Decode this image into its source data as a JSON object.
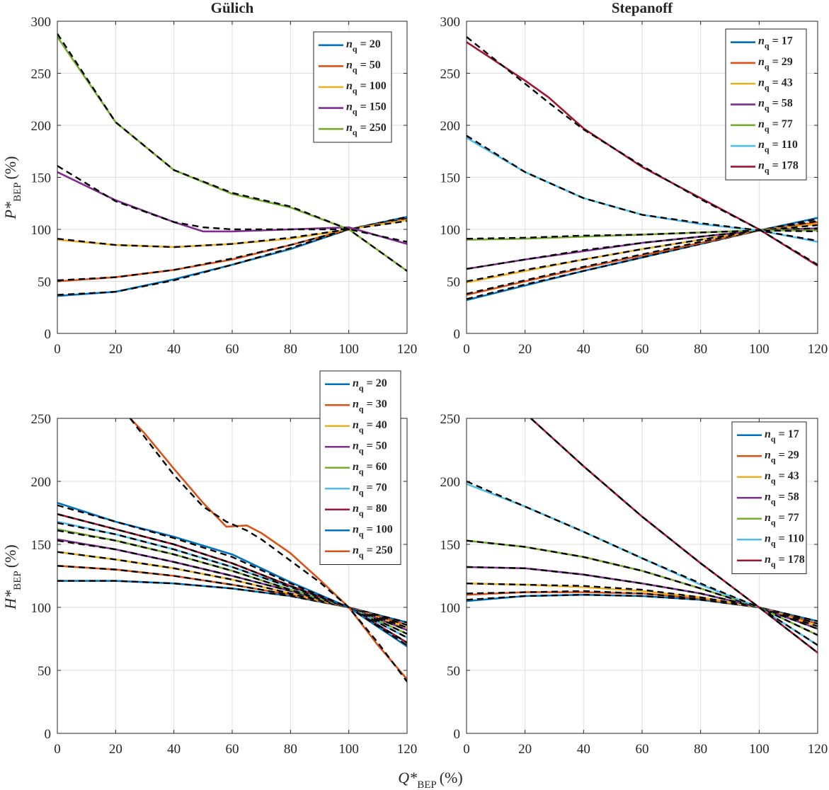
{
  "figure": {
    "xlabel_main": "Q*",
    "xlabel_sub": "BEP",
    "xlabel_unit": "(%)"
  },
  "chart_data": [
    {
      "type": "line",
      "title": "Gülich",
      "ylabel_main": "P*",
      "ylabel_sub": "BEP",
      "ylabel_unit": "(%)",
      "xlim": [
        0,
        120
      ],
      "ylim": [
        0,
        300
      ],
      "xticks": [
        0,
        20,
        40,
        60,
        80,
        100,
        120
      ],
      "yticks": [
        0,
        50,
        100,
        150,
        200,
        250,
        300
      ],
      "legend_symbol": "n",
      "legend_sub": "q",
      "legend_position": "top-right",
      "grid": true,
      "series": [
        {
          "name": "20",
          "label": " = 20",
          "color": "#0072BD",
          "x": [
            0,
            20,
            40,
            60,
            80,
            100,
            120
          ],
          "y": [
            36,
            40,
            52,
            66,
            81,
            100,
            112
          ],
          "fit": [
            37,
            40,
            51,
            66,
            82,
            100,
            112
          ]
        },
        {
          "name": "50",
          "label": " = 50",
          "color": "#D95319",
          "x": [
            0,
            20,
            40,
            60,
            80,
            100,
            120
          ],
          "y": [
            50,
            54,
            61,
            71,
            85,
            100,
            110
          ],
          "fit": [
            51,
            54,
            61,
            72,
            85,
            100,
            110
          ]
        },
        {
          "name": "100",
          "label": " = 100",
          "color": "#EDB120",
          "x": [
            0,
            20,
            40,
            60,
            80,
            100,
            120
          ],
          "y": [
            90,
            85,
            83,
            86,
            91,
            100,
            109
          ],
          "fit": [
            91,
            85,
            83,
            86,
            92,
            100,
            108
          ]
        },
        {
          "name": "150",
          "label": " = 150",
          "color": "#7E2F8E",
          "x": [
            0,
            20,
            40,
            50,
            60,
            80,
            100,
            120
          ],
          "y": [
            155,
            128,
            107,
            98,
            98,
            100,
            102,
            86
          ],
          "fit": [
            161,
            127,
            107,
            102,
            100,
            100,
            100,
            88
          ]
        },
        {
          "name": "250",
          "label": " = 250",
          "color": "#77AC30",
          "x": [
            0,
            20,
            40,
            60,
            80,
            100,
            120
          ],
          "y": [
            285,
            203,
            157,
            134,
            121,
            100,
            60
          ],
          "fit": [
            288,
            203,
            157,
            135,
            122,
            100,
            60
          ]
        }
      ]
    },
    {
      "type": "line",
      "title": "Stepanoff",
      "ylabel_main": "",
      "ylabel_sub": "",
      "ylabel_unit": "",
      "xlim": [
        0,
        120
      ],
      "ylim": [
        0,
        300
      ],
      "xticks": [
        0,
        20,
        40,
        60,
        80,
        100,
        120
      ],
      "yticks": [
        0,
        50,
        100,
        150,
        200,
        250,
        300
      ],
      "legend_symbol": "n",
      "legend_sub": "q",
      "legend_position": "top-right",
      "grid": true,
      "series": [
        {
          "name": "17",
          "label": " = 17",
          "color": "#0072BD",
          "x": [
            0,
            20,
            40,
            60,
            80,
            100,
            120
          ],
          "y": [
            32,
            46,
            60,
            73,
            86,
            99,
            111
          ],
          "fit": [
            33,
            47,
            60,
            73,
            86,
            99,
            110
          ]
        },
        {
          "name": "29",
          "label": " = 29",
          "color": "#D95319",
          "x": [
            0,
            20,
            40,
            60,
            80,
            100,
            120
          ],
          "y": [
            37,
            50,
            63,
            75,
            87,
            99,
            107
          ],
          "fit": [
            38,
            51,
            64,
            76,
            88,
            99,
            108
          ]
        },
        {
          "name": "43",
          "label": " = 43",
          "color": "#EDB120",
          "x": [
            0,
            20,
            40,
            60,
            80,
            100,
            120
          ],
          "y": [
            49,
            60,
            71,
            81,
            90,
            99,
            105
          ],
          "fit": [
            50,
            61,
            71,
            81,
            90,
            99,
            104
          ]
        },
        {
          "name": "58",
          "label": " = 58",
          "color": "#7E2F8E",
          "x": [
            0,
            20,
            40,
            60,
            80,
            100,
            120
          ],
          "y": [
            62,
            71,
            79,
            87,
            93,
            99,
            101
          ],
          "fit": [
            62,
            71,
            80,
            87,
            93,
            99,
            101
          ]
        },
        {
          "name": "77",
          "label": " = 77",
          "color": "#77AC30",
          "x": [
            0,
            20,
            40,
            60,
            80,
            100,
            120
          ],
          "y": [
            90,
            91,
            93,
            95,
            97,
            99,
            99
          ],
          "fit": [
            91,
            92,
            94,
            95,
            97,
            99,
            98
          ]
        },
        {
          "name": "110",
          "label": " = 110",
          "color": "#4DBEEE",
          "x": [
            0,
            20,
            40,
            60,
            80,
            100,
            120
          ],
          "y": [
            188,
            155,
            130,
            114,
            105,
            99,
            88
          ],
          "fit": [
            190,
            155,
            130,
            114,
            106,
            99,
            89
          ]
        },
        {
          "name": "178",
          "label": " = 178",
          "color": "#A2142F",
          "x": [
            0,
            20,
            28,
            40,
            60,
            80,
            100,
            120
          ],
          "y": [
            280,
            243,
            227,
            197,
            160,
            130,
            100,
            65
          ],
          "fit": [
            285,
            240,
            222,
            196,
            161,
            129,
            100,
            66
          ]
        }
      ]
    },
    {
      "type": "line",
      "title": "",
      "ylabel_main": "H*",
      "ylabel_sub": "BEP",
      "ylabel_unit": "(%)",
      "xlim": [
        0,
        120
      ],
      "ylim": [
        0,
        250
      ],
      "xticks": [
        0,
        20,
        40,
        60,
        80,
        100,
        120
      ],
      "yticks": [
        0,
        50,
        100,
        150,
        200,
        250
      ],
      "legend_symbol": "n",
      "legend_sub": "q",
      "legend_position": "top-right",
      "grid": true,
      "series": [
        {
          "name": "20",
          "label": " = 20",
          "color": "#0072BD",
          "x": [
            0,
            20,
            40,
            60,
            80,
            100,
            120
          ],
          "y": [
            121,
            121,
            119,
            115,
            109,
            100,
            88
          ],
          "fit": [
            121,
            121,
            119,
            115,
            109,
            100,
            88
          ]
        },
        {
          "name": "30",
          "label": " = 30",
          "color": "#D95319",
          "x": [
            0,
            20,
            40,
            60,
            80,
            100,
            120
          ],
          "y": [
            133,
            130,
            125,
            118,
            110,
            100,
            86
          ],
          "fit": [
            133,
            130,
            125,
            118,
            110,
            100,
            86
          ]
        },
        {
          "name": "40",
          "label": " = 40",
          "color": "#EDB120",
          "x": [
            0,
            20,
            40,
            60,
            80,
            100,
            120
          ],
          "y": [
            144,
            138,
            131,
            122,
            111,
            100,
            84
          ],
          "fit": [
            144,
            138,
            131,
            122,
            111,
            100,
            84
          ]
        },
        {
          "name": "50",
          "label": " = 50",
          "color": "#7E2F8E",
          "x": [
            0,
            20,
            40,
            60,
            80,
            100,
            120
          ],
          "y": [
            154,
            146,
            136,
            125,
            113,
            100,
            82
          ],
          "fit": [
            153,
            146,
            136,
            125,
            113,
            100,
            82
          ]
        },
        {
          "name": "60",
          "label": " = 60",
          "color": "#77AC30",
          "x": [
            0,
            20,
            40,
            60,
            80,
            100,
            120
          ],
          "y": [
            162,
            153,
            142,
            129,
            114,
            100,
            79
          ],
          "fit": [
            161,
            153,
            142,
            129,
            114,
            100,
            79
          ]
        },
        {
          "name": "70",
          "label": " = 70",
          "color": "#4DBEEE",
          "x": [
            0,
            20,
            40,
            60,
            80,
            100,
            120
          ],
          "y": [
            168,
            158,
            146,
            132,
            116,
            100,
            76
          ],
          "fit": [
            167,
            158,
            146,
            132,
            116,
            100,
            76
          ]
        },
        {
          "name": "80",
          "label": " = 80",
          "color": "#A2142F",
          "x": [
            0,
            20,
            40,
            60,
            80,
            100,
            120
          ],
          "y": [
            174,
            162,
            150,
            135,
            117,
            100,
            72
          ],
          "fit": [
            174,
            162,
            150,
            135,
            117,
            100,
            72
          ]
        },
        {
          "name": "100",
          "label": " = 100",
          "color": "#0072BD",
          "x": [
            0,
            20,
            40,
            60,
            80,
            100,
            120
          ],
          "y": [
            183,
            168,
            156,
            142,
            120,
            100,
            69
          ],
          "fit": [
            181,
            168,
            155,
            140,
            119,
            100,
            70
          ]
        },
        {
          "name": "250",
          "label": " = 250",
          "color": "#D95319",
          "x": [
            25,
            30,
            40,
            50,
            58,
            65,
            70,
            80,
            90,
            100,
            110,
            120
          ],
          "y": [
            250,
            238,
            210,
            183,
            164,
            165,
            159,
            143,
            122,
            100,
            70,
            43
          ],
          "fit": [
            250,
            235,
            205,
            180,
            168,
            161,
            154,
            137,
            120,
            100,
            72,
            41
          ]
        }
      ]
    },
    {
      "type": "line",
      "title": "",
      "ylabel_main": "",
      "ylabel_sub": "",
      "ylabel_unit": "",
      "xlim": [
        0,
        120
      ],
      "ylim": [
        0,
        250
      ],
      "xticks": [
        0,
        20,
        40,
        60,
        80,
        100,
        120
      ],
      "yticks": [
        0,
        50,
        100,
        150,
        200,
        250
      ],
      "legend_symbol": "n",
      "legend_sub": "q",
      "legend_position": "top-right",
      "grid": true,
      "series": [
        {
          "name": "17",
          "label": " = 17",
          "color": "#0072BD",
          "x": [
            0,
            20,
            40,
            60,
            80,
            100,
            120
          ],
          "y": [
            105,
            109,
            110,
            109,
            106,
            100,
            89
          ],
          "fit": [
            106,
            109,
            110,
            109,
            106,
            100,
            89
          ]
        },
        {
          "name": "29",
          "label": " = 29",
          "color": "#D95319",
          "x": [
            0,
            20,
            40,
            60,
            80,
            100,
            120
          ],
          "y": [
            110,
            112,
            112,
            111,
            107,
            100,
            87
          ],
          "fit": [
            111,
            112,
            113,
            111,
            107,
            100,
            87
          ]
        },
        {
          "name": "43",
          "label": " = 43",
          "color": "#EDB120",
          "x": [
            0,
            20,
            40,
            60,
            80,
            100,
            120
          ],
          "y": [
            119,
            118,
            116,
            113,
            108,
            100,
            85
          ],
          "fit": [
            119,
            118,
            117,
            114,
            108,
            100,
            85
          ]
        },
        {
          "name": "58",
          "label": " = 58",
          "color": "#7E2F8E",
          "x": [
            0,
            20,
            40,
            60,
            80,
            100,
            120
          ],
          "y": [
            132,
            131,
            126,
            119,
            111,
            100,
            83
          ],
          "fit": [
            132,
            131,
            126,
            119,
            111,
            100,
            83
          ]
        },
        {
          "name": "77",
          "label": " = 77",
          "color": "#77AC30",
          "x": [
            0,
            20,
            40,
            60,
            80,
            100,
            120
          ],
          "y": [
            153,
            148,
            140,
            129,
            115,
            100,
            78
          ],
          "fit": [
            153,
            148,
            140,
            129,
            115,
            100,
            78
          ]
        },
        {
          "name": "110",
          "label": " = 110",
          "color": "#4DBEEE",
          "x": [
            0,
            20,
            40,
            60,
            80,
            100,
            120
          ],
          "y": [
            198,
            180,
            160,
            139,
            118,
            100,
            70
          ],
          "fit": [
            200,
            180,
            160,
            139,
            119,
            100,
            70
          ]
        },
        {
          "name": "178",
          "label": " = 178",
          "color": "#A2142F",
          "x": [
            22,
            40,
            60,
            80,
            100,
            120
          ],
          "y": [
            250,
            212,
            172,
            135,
            100,
            64
          ],
          "fit": [
            250,
            212,
            172,
            135,
            100,
            64
          ]
        }
      ]
    }
  ]
}
